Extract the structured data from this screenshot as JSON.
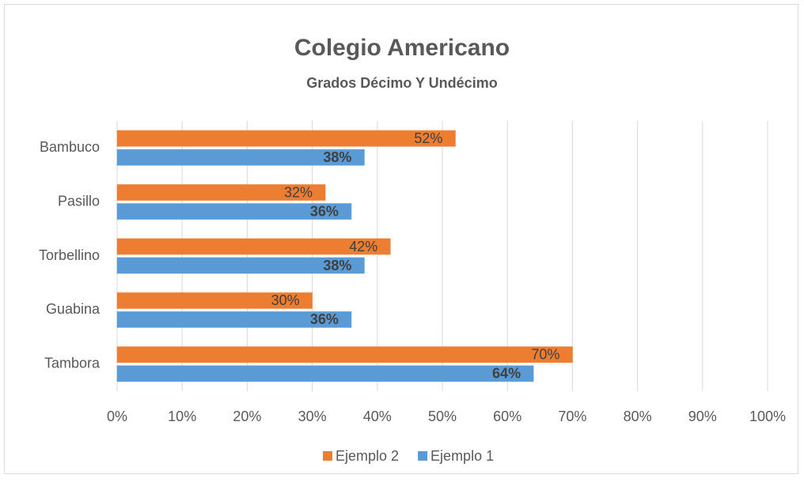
{
  "chart_data": {
    "type": "barh",
    "title": "Colegio Americano",
    "subtitle": "Grados Décimo Y Undécimo",
    "categories": [
      "Bambuco",
      "Pasillo",
      "Torbellino",
      "Guabina",
      "Tambora"
    ],
    "series": [
      {
        "name": "Ejemplo 2",
        "color": "#ED7D31",
        "values": [
          52,
          32,
          42,
          30,
          70
        ],
        "value_labels": [
          "52%",
          "32%",
          "42%",
          "30%",
          "70%"
        ]
      },
      {
        "name": "Ejemplo 1",
        "color": "#5B9BD5",
        "values": [
          38,
          36,
          38,
          36,
          64
        ],
        "value_labels": [
          "38%",
          "36%",
          "38%",
          "36%",
          "64%"
        ]
      }
    ],
    "xlim": [
      0,
      100
    ],
    "xticks": [
      {
        "value": 0,
        "label": "0%"
      },
      {
        "value": 10,
        "label": "10%"
      },
      {
        "value": 20,
        "label": "20%"
      },
      {
        "value": 30,
        "label": "30%"
      },
      {
        "value": 40,
        "label": "40%"
      },
      {
        "value": 50,
        "label": "50%"
      },
      {
        "value": 60,
        "label": "60%"
      },
      {
        "value": 70,
        "label": "70%"
      },
      {
        "value": 80,
        "label": "80%"
      },
      {
        "value": 90,
        "label": "90%"
      },
      {
        "value": 100,
        "label": "100%"
      }
    ],
    "grid": true,
    "legend": "bottom"
  }
}
